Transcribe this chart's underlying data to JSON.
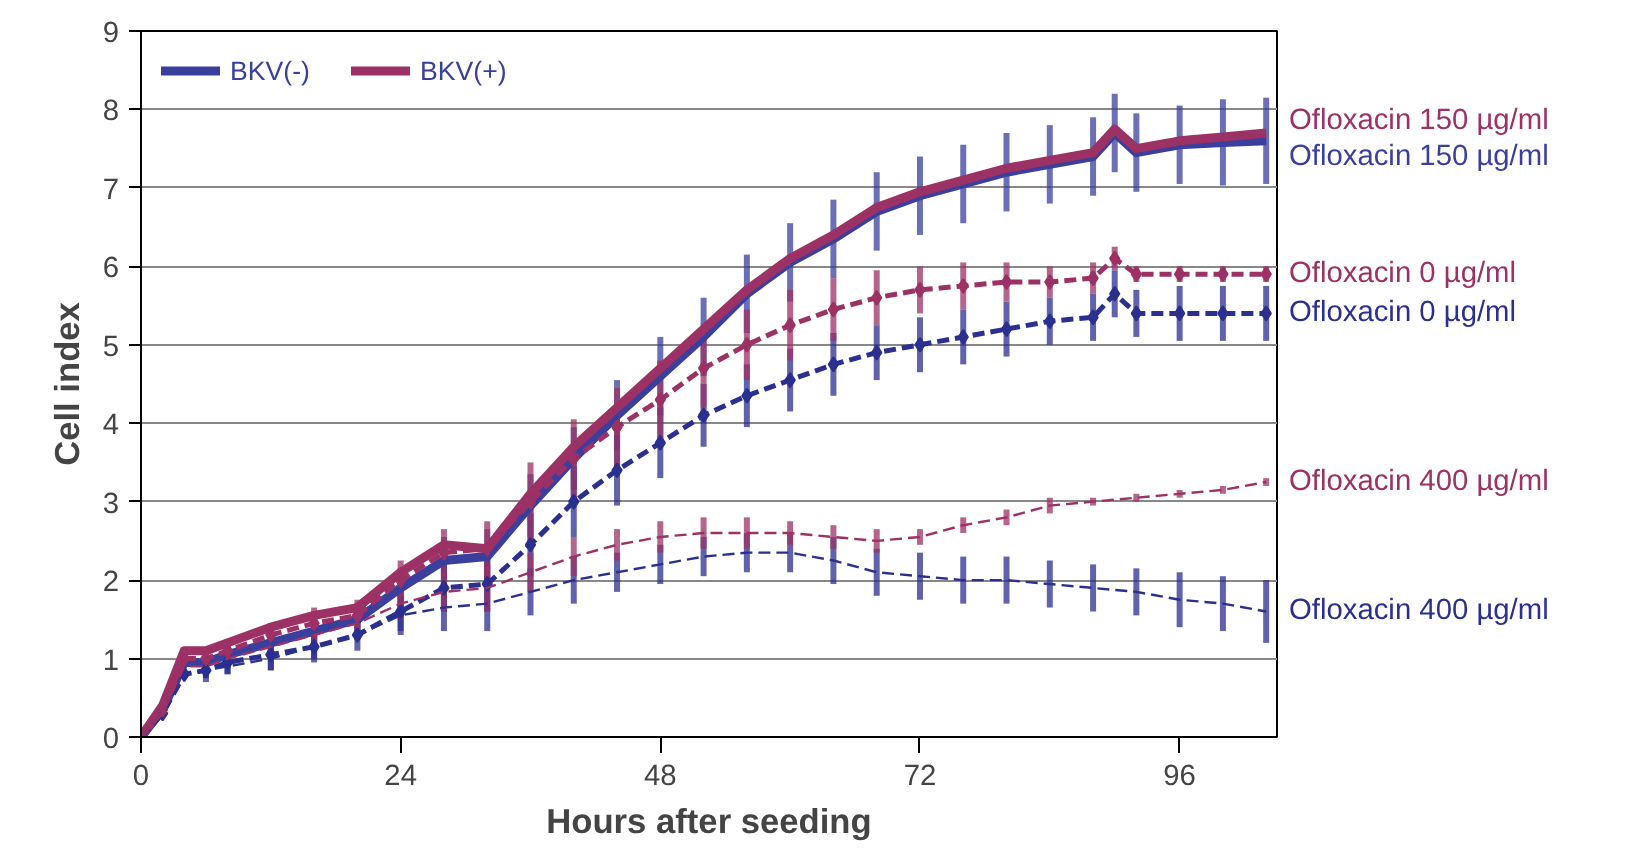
{
  "chart_data": {
    "type": "line",
    "xlabel": "Hours after seeding",
    "ylabel": "Cell index",
    "xlim": [
      0,
      105
    ],
    "ylim": [
      0,
      9
    ],
    "xticks": [
      0,
      24,
      48,
      72,
      96
    ],
    "yticks": [
      0,
      1,
      2,
      3,
      4,
      5,
      6,
      7,
      8,
      9
    ],
    "grid": "y",
    "legend": "top left",
    "series": [
      {
        "name": "BKV(-)",
        "color": "#3a3f9e",
        "line_style": "solid",
        "marker": "none",
        "x": [
          0,
          2,
          4,
          6,
          8,
          12,
          16,
          20,
          24,
          28,
          32,
          36,
          40,
          44,
          48,
          52,
          56,
          60,
          64,
          68,
          72,
          76,
          80,
          84,
          88,
          90,
          92,
          96,
          100,
          104
        ],
        "values": [
          0,
          0.35,
          0.95,
          0.95,
          1.05,
          1.2,
          1.35,
          1.5,
          1.9,
          2.25,
          2.3,
          2.95,
          3.55,
          4.1,
          4.6,
          5.1,
          5.65,
          6.05,
          6.35,
          6.7,
          6.9,
          7.05,
          7.2,
          7.3,
          7.4,
          7.7,
          7.45,
          7.55,
          7.58,
          7.6
        ],
        "errors": [
          null,
          null,
          null,
          0.1,
          0.15,
          0.15,
          0.2,
          0.2,
          0.25,
          0.3,
          0.35,
          0.4,
          0.4,
          0.45,
          0.5,
          0.5,
          0.5,
          0.5,
          0.5,
          0.5,
          0.5,
          0.5,
          0.5,
          0.5,
          0.5,
          0.5,
          0.5,
          0.5,
          0.55,
          0.55
        ]
      },
      {
        "name": "BKV(+)",
        "color": "#9c3166",
        "line_style": "solid",
        "marker": "none",
        "x": [
          0,
          2,
          4,
          6,
          8,
          12,
          16,
          20,
          24,
          28,
          32,
          36,
          40,
          44,
          48,
          52,
          56,
          60,
          64,
          68,
          72,
          76,
          80,
          84,
          88,
          90,
          92,
          96,
          100,
          104
        ],
        "values": [
          0,
          0.4,
          1.1,
          1.1,
          1.2,
          1.4,
          1.55,
          1.65,
          2.1,
          2.45,
          2.4,
          3.1,
          3.7,
          4.2,
          4.7,
          5.2,
          5.7,
          6.1,
          6.4,
          6.75,
          6.95,
          7.1,
          7.25,
          7.35,
          7.45,
          7.75,
          7.5,
          7.6,
          7.65,
          7.7
        ]
      },
      {
        "color": "#2b2f8f",
        "line_style": "dashed",
        "marker": "diamond",
        "x": [
          0,
          2,
          4,
          6,
          8,
          12,
          16,
          20,
          24,
          28,
          32,
          36,
          40,
          44,
          48,
          52,
          56,
          60,
          64,
          68,
          72,
          76,
          80,
          84,
          88,
          90,
          92,
          96,
          100,
          104
        ],
        "values": [
          0,
          0.3,
          0.8,
          0.85,
          0.95,
          1.05,
          1.15,
          1.3,
          1.6,
          1.9,
          1.95,
          2.45,
          3.0,
          3.4,
          3.75,
          4.1,
          4.35,
          4.55,
          4.75,
          4.9,
          5.0,
          5.1,
          5.2,
          5.3,
          5.35,
          5.65,
          5.4,
          5.4,
          5.4,
          5.4
        ],
        "errors": [
          null,
          null,
          null,
          0.15,
          0.15,
          0.2,
          0.2,
          0.2,
          0.25,
          0.3,
          0.35,
          0.4,
          0.45,
          0.45,
          0.45,
          0.4,
          0.4,
          0.4,
          0.4,
          0.35,
          0.35,
          0.35,
          0.35,
          0.3,
          0.3,
          0.3,
          0.3,
          0.35,
          0.35,
          0.35
        ]
      },
      {
        "color": "#9c3166",
        "line_style": "dashed",
        "marker": "diamond",
        "x": [
          0,
          2,
          4,
          6,
          8,
          12,
          16,
          20,
          24,
          28,
          32,
          36,
          40,
          44,
          48,
          52,
          56,
          60,
          64,
          68,
          72,
          76,
          80,
          84,
          88,
          90,
          92,
          96,
          100,
          104
        ],
        "values": [
          0,
          0.35,
          1.0,
          1.0,
          1.1,
          1.3,
          1.45,
          1.55,
          2.0,
          2.35,
          2.4,
          3.0,
          3.55,
          3.95,
          4.3,
          4.7,
          5.0,
          5.25,
          5.45,
          5.6,
          5.7,
          5.75,
          5.8,
          5.8,
          5.85,
          6.1,
          5.9,
          5.9,
          5.9,
          5.9
        ],
        "errors": [
          null,
          null,
          null,
          0.1,
          0.15,
          0.15,
          0.2,
          0.2,
          0.25,
          0.3,
          0.35,
          0.5,
          0.5,
          0.5,
          0.5,
          0.5,
          0.45,
          0.45,
          0.4,
          0.35,
          0.3,
          0.3,
          0.25,
          0.2,
          0.2,
          0.15,
          0.1,
          0.1,
          0.1,
          0.1
        ]
      },
      {
        "color": "#2b2f8f",
        "line_style": "dashed",
        "marker": "none",
        "x": [
          0,
          2,
          4,
          6,
          8,
          12,
          16,
          20,
          24,
          28,
          32,
          36,
          40,
          44,
          48,
          52,
          56,
          60,
          64,
          68,
          72,
          76,
          80,
          84,
          88,
          92,
          96,
          100,
          104
        ],
        "values": [
          0,
          0.3,
          0.8,
          0.85,
          0.9,
          1.0,
          1.15,
          1.3,
          1.55,
          1.65,
          1.7,
          1.85,
          2.0,
          2.1,
          2.2,
          2.3,
          2.35,
          2.35,
          2.25,
          2.1,
          2.05,
          2.0,
          2.0,
          1.95,
          1.9,
          1.85,
          1.75,
          1.7,
          1.6
        ],
        "errors": [
          null,
          null,
          null,
          0.1,
          0.1,
          0.15,
          0.15,
          null,
          0.25,
          0.3,
          0.35,
          0.3,
          0.3,
          0.25,
          0.25,
          0.25,
          0.25,
          0.25,
          0.3,
          0.3,
          0.3,
          0.3,
          0.3,
          0.3,
          0.3,
          0.3,
          0.35,
          0.35,
          0.4
        ]
      },
      {
        "color": "#9c3166",
        "line_style": "dashed",
        "marker": "none",
        "x": [
          0,
          2,
          4,
          6,
          8,
          12,
          16,
          20,
          24,
          28,
          32,
          36,
          40,
          44,
          48,
          52,
          56,
          60,
          64,
          68,
          72,
          76,
          80,
          84,
          88,
          92,
          96,
          100,
          104
        ],
        "values": [
          0,
          0.3,
          0.9,
          0.9,
          1.0,
          1.15,
          1.3,
          1.45,
          1.7,
          1.85,
          1.9,
          2.1,
          2.3,
          2.45,
          2.55,
          2.6,
          2.6,
          2.6,
          2.55,
          2.5,
          2.55,
          2.7,
          2.8,
          2.95,
          3.0,
          3.05,
          3.1,
          3.15,
          3.25
        ],
        "errors": [
          null,
          null,
          null,
          0.1,
          0.1,
          0.15,
          0.15,
          0.2,
          0.2,
          0.25,
          0.3,
          0.25,
          0.25,
          0.2,
          0.2,
          0.2,
          0.2,
          0.15,
          0.15,
          0.15,
          0.1,
          0.1,
          0.1,
          0.1,
          0.05,
          0.05,
          0.05,
          0.05,
          0.05
        ]
      }
    ],
    "annotations": [
      "Ofloxacin 150 µg/ml",
      "Ofloxacin 150 µg/ml",
      "Ofloxacin 0 µg/ml",
      "Ofloxacin 0 µg/ml",
      "Ofloxacin 400 µg/ml",
      "Ofloxacin 400 µg/ml"
    ]
  }
}
